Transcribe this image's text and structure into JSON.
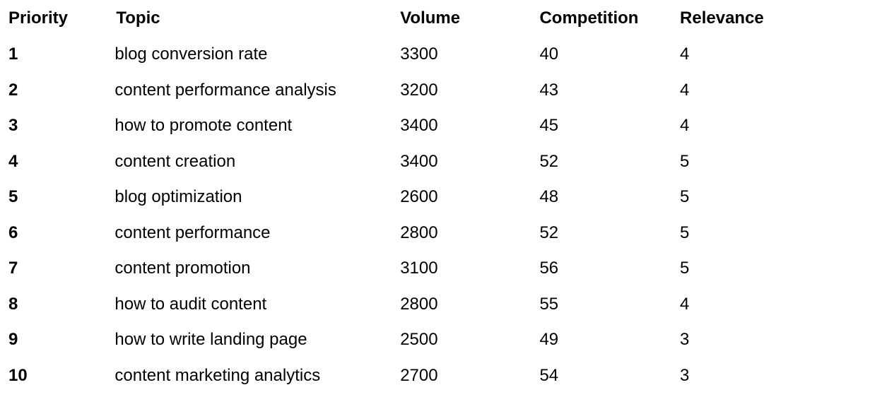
{
  "table": {
    "headers": {
      "priority": "Priority",
      "topic": "Topic",
      "volume": "Volume",
      "competition": "Competition",
      "relevance": "Relevance"
    },
    "rows": [
      {
        "priority": "1",
        "topic": "blog conversion rate",
        "volume": "3300",
        "competition": "40",
        "relevance": "4"
      },
      {
        "priority": "2",
        "topic": "content performance analysis",
        "volume": "3200",
        "competition": "43",
        "relevance": "4"
      },
      {
        "priority": "3",
        "topic": "how to promote content",
        "volume": "3400",
        "competition": "45",
        "relevance": "4"
      },
      {
        "priority": "4",
        "topic": "content creation",
        "volume": "3400",
        "competition": "52",
        "relevance": "5"
      },
      {
        "priority": "5",
        "topic": "blog optimization",
        "volume": "2600",
        "competition": "48",
        "relevance": "5"
      },
      {
        "priority": "6",
        "topic": "content performance",
        "volume": "2800",
        "competition": "52",
        "relevance": "5"
      },
      {
        "priority": "7",
        "topic": "content promotion",
        "volume": "3100",
        "competition": "56",
        "relevance": "5"
      },
      {
        "priority": "8",
        "topic": "how to audit content",
        "volume": "2800",
        "competition": "55",
        "relevance": "4"
      },
      {
        "priority": "9",
        "topic": "how to write landing page",
        "volume": "2500",
        "competition": "49",
        "relevance": "3"
      },
      {
        "priority": "10",
        "topic": "content marketing analytics",
        "volume": "2700",
        "competition": "54",
        "relevance": "3"
      }
    ]
  }
}
